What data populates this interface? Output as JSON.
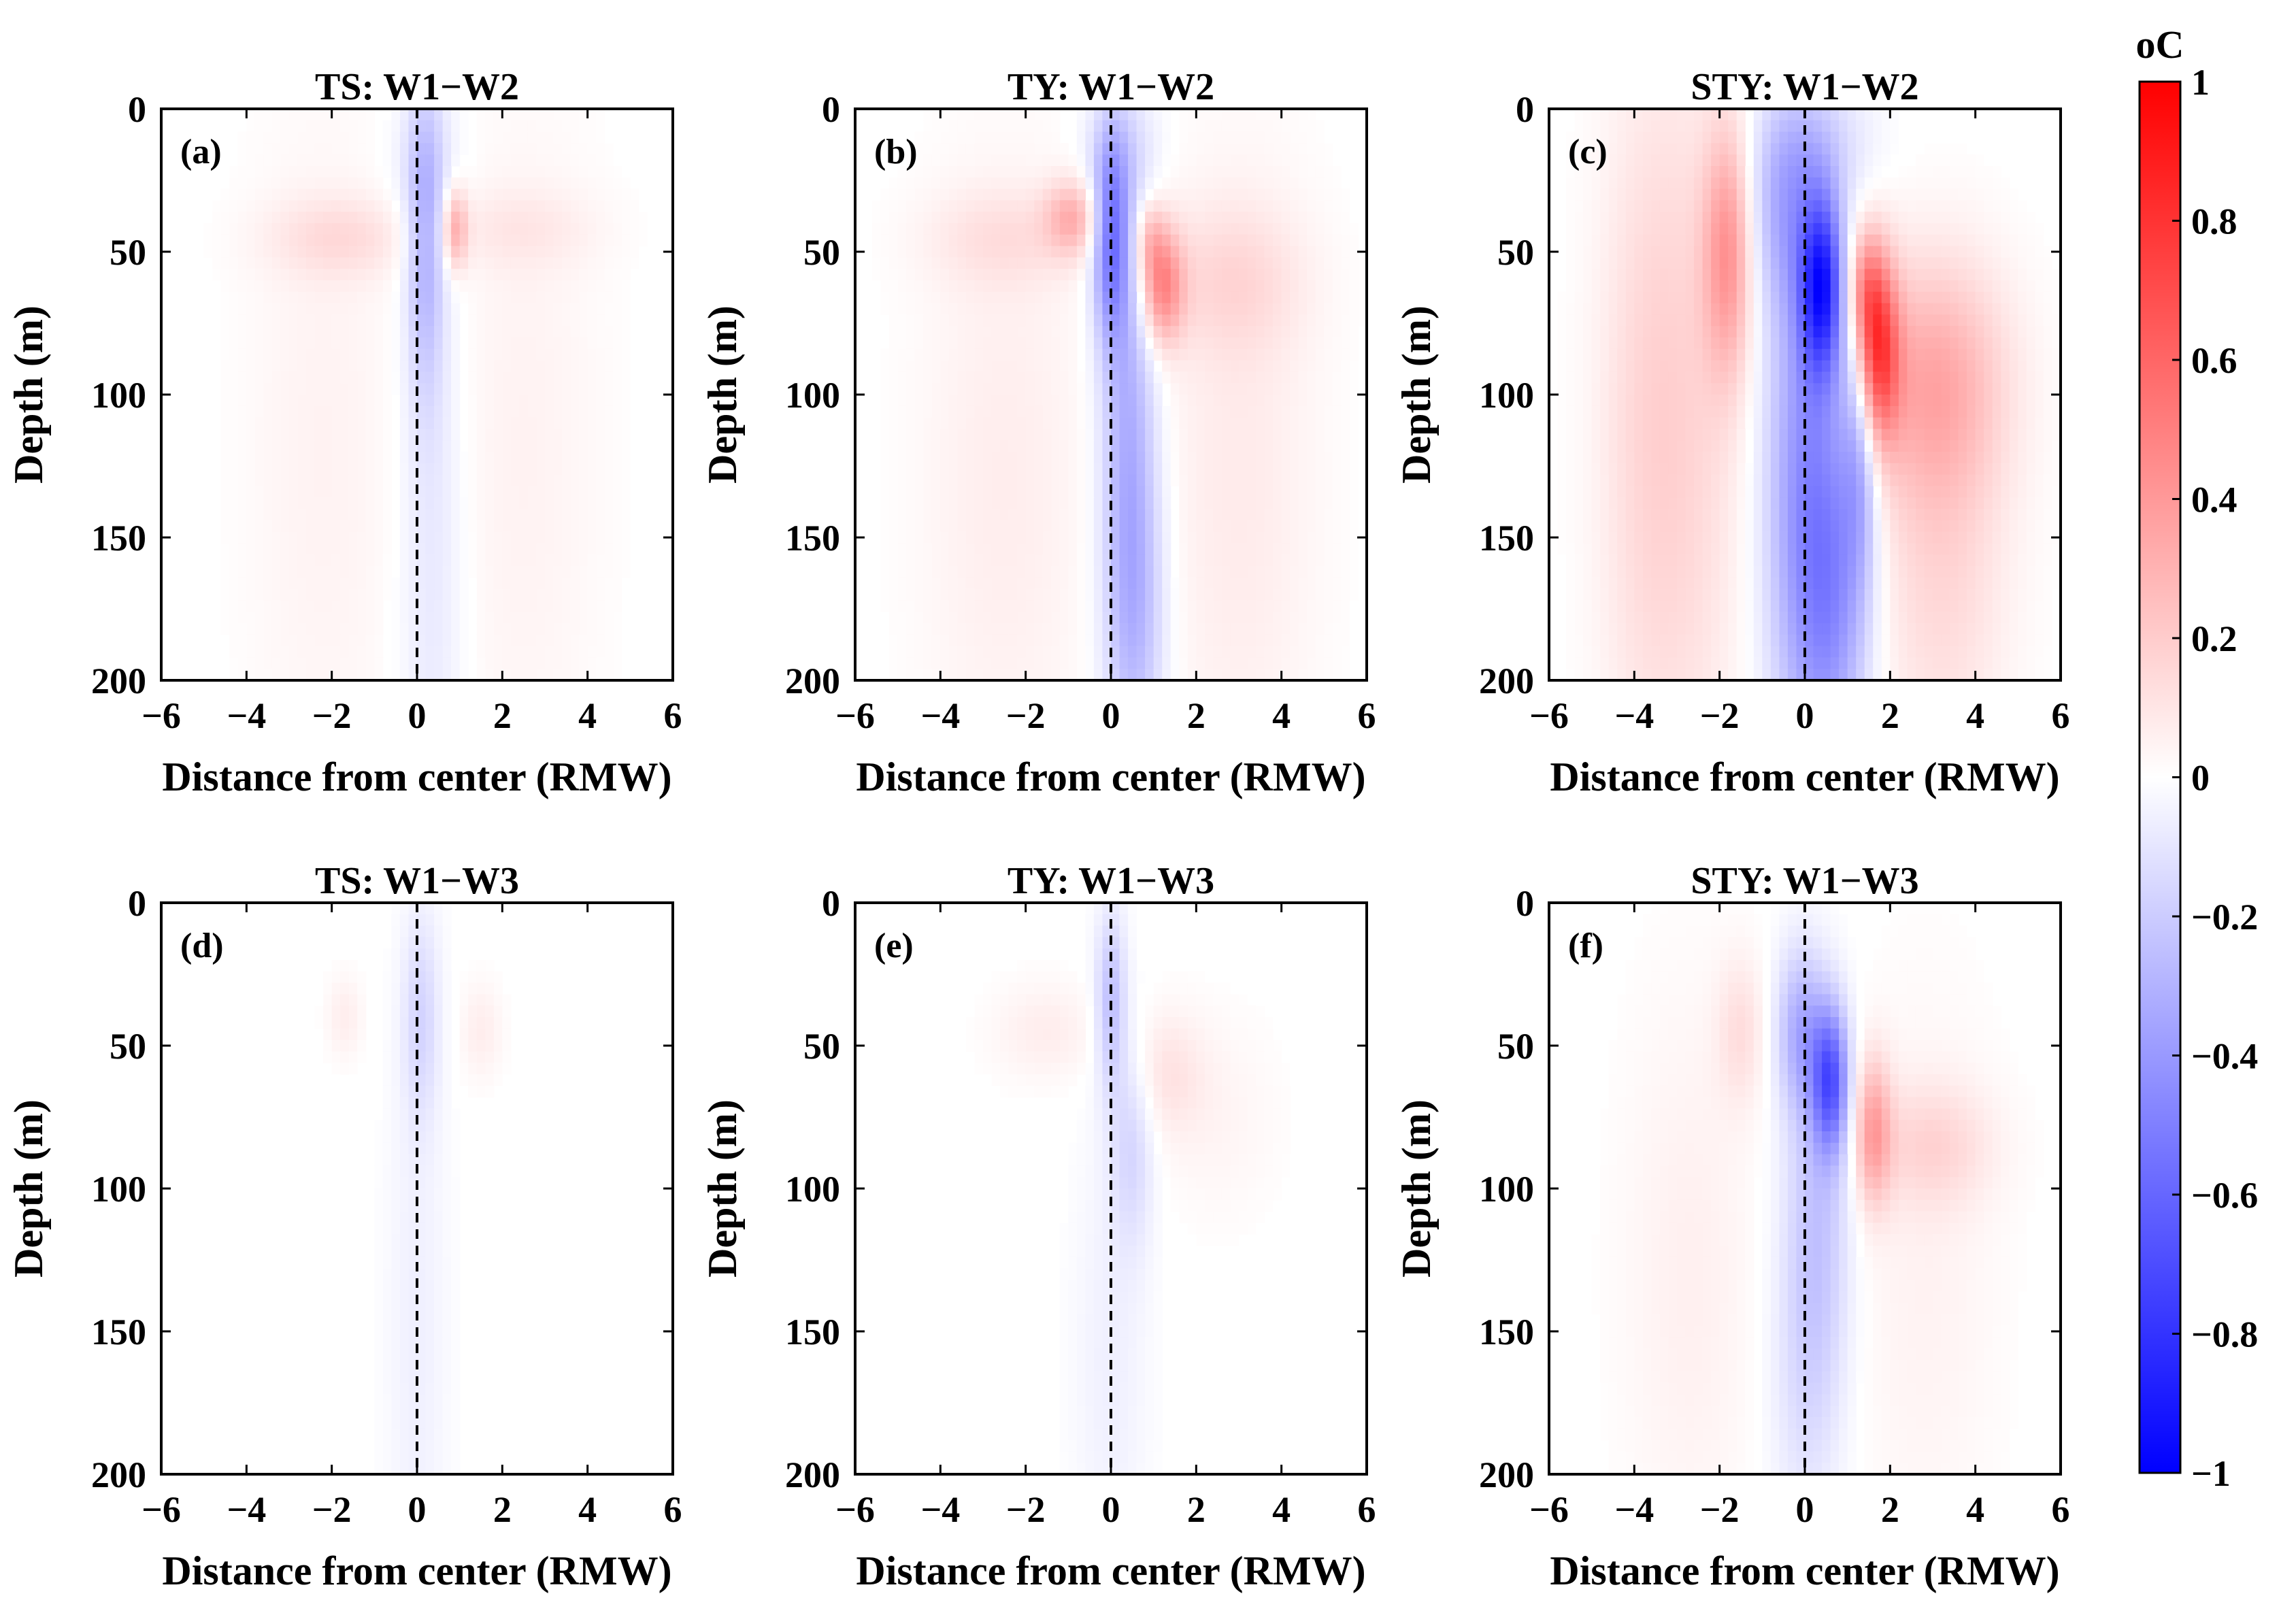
{
  "chart_data": {
    "type": "heatmap",
    "unit_label": "oC",
    "colorbar": {
      "min": -1,
      "max": 1,
      "ticks": [
        "1",
        "0.8",
        "0.6",
        "0.4",
        "0.2",
        "0",
        "−0.2",
        "−0.4",
        "−0.6",
        "−0.8",
        "−1"
      ],
      "colors": {
        "negative": "#0000ff",
        "zero": "#ffffff",
        "positive": "#ff0000"
      }
    },
    "x_ticks": [
      "−6",
      "−4",
      "−2",
      "0",
      "2",
      "4",
      "6"
    ],
    "y_ticks": [
      "0",
      "50",
      "100",
      "150",
      "200"
    ],
    "xlim": [
      -6,
      6
    ],
    "ylim": [
      0,
      200
    ],
    "center_line_x": 0,
    "panels": [
      {
        "title": "TS: W1−W2",
        "label": "(a)",
        "xlabel": "Distance from center (RMW)",
        "ylabel": "Depth (m)",
        "blobs": [
          {
            "x": 0.2,
            "y": 45,
            "sx": 0.3,
            "sy": 38,
            "v": -0.28
          },
          {
            "x": 0.35,
            "y": 150,
            "sx": 0.55,
            "sy": 90,
            "v": -0.1
          },
          {
            "x": 0.15,
            "y": 20,
            "sx": 0.6,
            "sy": 18,
            "v": -0.06
          },
          {
            "x": 0.9,
            "y": 42,
            "sx": 0.2,
            "sy": 10,
            "v": 0.3
          },
          {
            "x": -1.8,
            "y": 45,
            "sx": 1.2,
            "sy": 10,
            "v": 0.12
          },
          {
            "x": -2.2,
            "y": 120,
            "sx": 1.3,
            "sy": 90,
            "v": 0.05
          },
          {
            "x": 2.5,
            "y": 120,
            "sx": 1.3,
            "sy": 90,
            "v": 0.05
          },
          {
            "x": 2.4,
            "y": 42,
            "sx": 1.3,
            "sy": 10,
            "v": 0.07
          }
        ]
      },
      {
        "title": "TY: W1−W2",
        "label": "(b)",
        "xlabel": "Distance from center (RMW)",
        "ylabel": "Depth (m)",
        "blobs": [
          {
            "x": 0.0,
            "y": 45,
            "sx": 0.3,
            "sy": 25,
            "v": -0.5
          },
          {
            "x": 0.4,
            "y": 110,
            "sx": 0.45,
            "sy": 60,
            "v": -0.3
          },
          {
            "x": 0.6,
            "y": 180,
            "sx": 0.5,
            "sy": 40,
            "v": -0.2
          },
          {
            "x": 0.2,
            "y": 15,
            "sx": 0.6,
            "sy": 15,
            "v": -0.1
          },
          {
            "x": 1.2,
            "y": 62,
            "sx": 0.35,
            "sy": 14,
            "v": 0.45
          },
          {
            "x": 0.9,
            "y": 45,
            "sx": 0.25,
            "sy": 10,
            "v": 0.2
          },
          {
            "x": -0.9,
            "y": 38,
            "sx": 0.45,
            "sy": 9,
            "v": 0.28
          },
          {
            "x": -2.5,
            "y": 45,
            "sx": 1.3,
            "sy": 12,
            "v": 0.1
          },
          {
            "x": 2.8,
            "y": 60,
            "sx": 1.2,
            "sy": 18,
            "v": 0.12
          },
          {
            "x": -2.5,
            "y": 130,
            "sx": 1.4,
            "sy": 80,
            "v": 0.07
          },
          {
            "x": 3.0,
            "y": 130,
            "sx": 1.3,
            "sy": 80,
            "v": 0.08
          }
        ]
      },
      {
        "title": "STY: W1−W2",
        "label": "(c)",
        "xlabel": "Distance from center (RMW)",
        "ylabel": "Depth (m)",
        "blobs": [
          {
            "x": 0.4,
            "y": 62,
            "sx": 0.35,
            "sy": 22,
            "v": -0.75
          },
          {
            "x": 0.0,
            "y": 130,
            "sx": 0.7,
            "sy": 70,
            "v": -0.4
          },
          {
            "x": 0.7,
            "y": 170,
            "sx": 0.6,
            "sy": 45,
            "v": -0.3
          },
          {
            "x": 1.3,
            "y": 115,
            "sx": 0.3,
            "sy": 35,
            "v": -0.3
          },
          {
            "x": -0.5,
            "y": 35,
            "sx": 0.6,
            "sy": 25,
            "v": -0.25
          },
          {
            "x": 0.3,
            "y": 12,
            "sx": 0.9,
            "sy": 15,
            "v": -0.12
          },
          {
            "x": 1.7,
            "y": 85,
            "sx": 0.35,
            "sy": 22,
            "v": 0.7
          },
          {
            "x": 1.4,
            "y": 62,
            "sx": 0.3,
            "sy": 15,
            "v": 0.35
          },
          {
            "x": 3.0,
            "y": 95,
            "sx": 1.2,
            "sy": 30,
            "v": 0.3
          },
          {
            "x": 3.2,
            "y": 160,
            "sx": 1.1,
            "sy": 50,
            "v": 0.15
          },
          {
            "x": -1.8,
            "y": 50,
            "sx": 0.4,
            "sy": 30,
            "v": 0.38
          },
          {
            "x": -2.8,
            "y": 110,
            "sx": 1.1,
            "sy": 90,
            "v": 0.14
          },
          {
            "x": -3.8,
            "y": 110,
            "sx": 0.8,
            "sy": 90,
            "v": 0.08
          }
        ]
      },
      {
        "title": "TS: W1−W3",
        "label": "(d)",
        "xlabel": "Distance from center (RMW)",
        "ylabel": "Depth (m)",
        "blobs": [
          {
            "x": 0.1,
            "y": 40,
            "sx": 0.3,
            "sy": 25,
            "v": -0.15
          },
          {
            "x": 0.0,
            "y": 150,
            "sx": 0.5,
            "sy": 80,
            "v": -0.06
          },
          {
            "x": 1.5,
            "y": 45,
            "sx": 0.35,
            "sy": 12,
            "v": 0.07
          },
          {
            "x": -1.7,
            "y": 40,
            "sx": 0.3,
            "sy": 10,
            "v": 0.07
          }
        ]
      },
      {
        "title": "TY: W1−W3",
        "label": "(e)",
        "xlabel": "Distance from center (RMW)",
        "ylabel": "Depth (m)",
        "blobs": [
          {
            "x": 0.0,
            "y": 35,
            "sx": 0.25,
            "sy": 22,
            "v": -0.25
          },
          {
            "x": 0.5,
            "y": 85,
            "sx": 0.35,
            "sy": 25,
            "v": -0.15
          },
          {
            "x": 0.0,
            "y": 160,
            "sx": 0.6,
            "sy": 60,
            "v": -0.06
          },
          {
            "x": 1.3,
            "y": 60,
            "sx": 0.6,
            "sy": 15,
            "v": 0.1
          },
          {
            "x": -1.5,
            "y": 45,
            "sx": 0.9,
            "sy": 12,
            "v": 0.07
          },
          {
            "x": 2.5,
            "y": 75,
            "sx": 1.0,
            "sy": 25,
            "v": 0.04
          }
        ]
      },
      {
        "title": "STY: W1−W3",
        "label": "(f)",
        "xlabel": "Distance from center (RMW)",
        "ylabel": "Depth (m)",
        "blobs": [
          {
            "x": 0.6,
            "y": 62,
            "sx": 0.3,
            "sy": 18,
            "v": -0.6
          },
          {
            "x": -0.1,
            "y": 45,
            "sx": 0.4,
            "sy": 20,
            "v": -0.3
          },
          {
            "x": 0.3,
            "y": 110,
            "sx": 0.55,
            "sy": 45,
            "v": -0.22
          },
          {
            "x": 0.0,
            "y": 170,
            "sx": 0.6,
            "sy": 40,
            "v": -0.1
          },
          {
            "x": 1.6,
            "y": 80,
            "sx": 0.3,
            "sy": 18,
            "v": 0.35
          },
          {
            "x": -1.5,
            "y": 45,
            "sx": 0.4,
            "sy": 18,
            "v": 0.12
          },
          {
            "x": 3.0,
            "y": 85,
            "sx": 1.0,
            "sy": 15,
            "v": 0.14
          },
          {
            "x": -2.7,
            "y": 130,
            "sx": 1.1,
            "sy": 70,
            "v": 0.06
          },
          {
            "x": 2.8,
            "y": 130,
            "sx": 1.2,
            "sy": 70,
            "v": 0.05
          }
        ]
      }
    ]
  }
}
